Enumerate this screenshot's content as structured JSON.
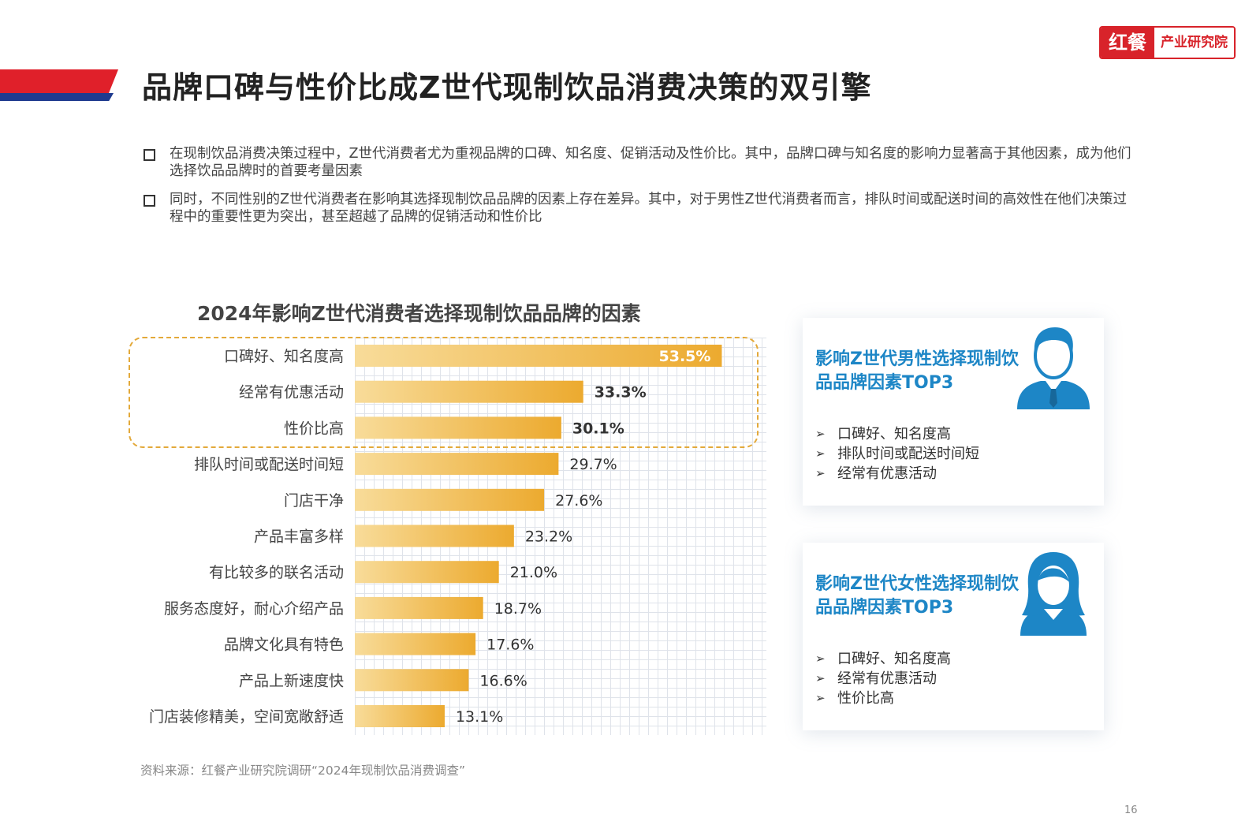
{
  "header": {
    "title": "品牌口碑与性价比成Z世代现制饮品消费决策的双引擎",
    "logo_main": "红餐",
    "logo_sub": "产业研究院"
  },
  "bullets": [
    "在现制饮品消费决策过程中，Z世代消费者尤为重视品牌的口碑、知名度、促销活动及性价比。其中，品牌口碑与知名度的影响力显著高于其他因素，成为他们选择饮品品牌时的首要考量因素",
    "同时，不同性别的Z世代消费者在影响其选择现制饮品品牌的因素上存在差异。其中，对于男性Z世代消费者而言，排队时间或配送时间的高效性在他们决策过程中的重要性更为突出，甚至超越了品牌的促销活动和性价比"
  ],
  "chart_data": {
    "type": "bar",
    "orientation": "horizontal",
    "title": "2024年影响Z世代消费者选择现制饮品品牌的因素",
    "categories": [
      "口碑好、知名度高",
      "经常有优惠活动",
      "性价比高",
      "排队时间或配送时间短",
      "门店干净",
      "产品丰富多样",
      "有比较多的联名活动",
      "服务态度好，耐心介绍产品",
      "品牌文化具有特色",
      "产品上新速度快",
      "门店装修精美，空间宽敞舒适"
    ],
    "values": [
      53.5,
      33.3,
      30.1,
      29.7,
      27.6,
      23.2,
      21.0,
      18.7,
      17.6,
      16.6,
      13.1
    ],
    "labels": [
      "53.5%",
      "33.3%",
      "30.1%",
      "29.7%",
      "27.6%",
      "23.2%",
      "21.0%",
      "18.7%",
      "17.6%",
      "16.6%",
      "13.1%"
    ],
    "highlighted_top": 3,
    "unit": "%",
    "bar_color_start": "#f8dc9a",
    "bar_color_end": "#ecaa2f",
    "grid": true
  },
  "panels": {
    "male": {
      "title": "影响Z世代男性选择现制饮品品牌因素TOP3",
      "items": [
        "口碑好、知名度高",
        "排队时间或配送时间短",
        "经常有优惠活动"
      ],
      "icon": "male-user-icon",
      "color": "#1d86c6"
    },
    "female": {
      "title": "影响Z世代女性选择现制饮品品牌因素TOP3",
      "items": [
        "口碑好、知名度高",
        "经常有优惠活动",
        "性价比高"
      ],
      "icon": "female-user-icon",
      "color": "#1d86c6"
    }
  },
  "footer": {
    "source": "资料来源：红餐产业研究院调研“2024年现制饮品消费调查”",
    "page": "16"
  }
}
